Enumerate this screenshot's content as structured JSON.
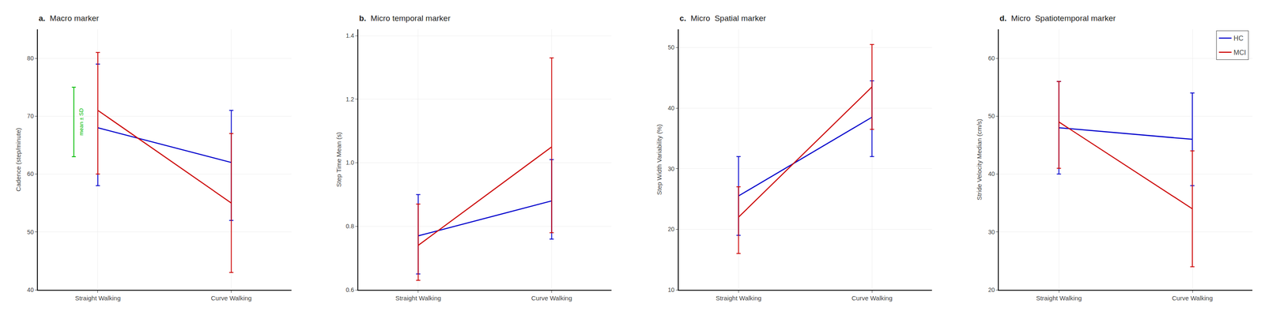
{
  "chart_data": [
    {
      "type": "line",
      "title": "Macro marker",
      "annotations": [
        {
          "text": "a."
        },
        {
          "text": "mean ± SD",
          "color": "#00bb00",
          "y": 69,
          "yerr": 6
        }
      ],
      "categories": [
        "Straight Walking",
        "Curve Walking"
      ],
      "ylabel": "Cadence (step/minute)",
      "ylim": [
        40,
        85
      ],
      "yticks": [
        40,
        50,
        60,
        70,
        80
      ],
      "grid": true,
      "series": [
        {
          "name": "HC",
          "color": "#0000cc",
          "values": [
            68,
            62
          ],
          "yerr_low": [
            10,
            10
          ],
          "yerr_high": [
            11,
            9
          ]
        },
        {
          "name": "MCI",
          "color": "#cc0000",
          "values": [
            71,
            55
          ],
          "yerr_low": [
            11,
            12
          ],
          "yerr_high": [
            10,
            12
          ]
        }
      ]
    },
    {
      "type": "line",
      "title": "Micro temporal marker",
      "annotations": [
        {
          "text": "b."
        }
      ],
      "categories": [
        "Straight Walking",
        "Curve Walking"
      ],
      "ylabel": "Step Time Mean (s)",
      "ylim": [
        0.6,
        1.42
      ],
      "yticks": [
        0.6,
        0.8,
        {
          "value": 1.0,
          "label": "1.0"
        },
        1.2,
        1.4
      ],
      "grid": true,
      "series": [
        {
          "name": "HC",
          "color": "#0000cc",
          "values": [
            0.77,
            0.88
          ],
          "yerr_low": [
            0.12,
            0.12
          ],
          "yerr_high": [
            0.13,
            0.13
          ]
        },
        {
          "name": "MCI",
          "color": "#cc0000",
          "values": [
            0.74,
            1.05
          ],
          "yerr_low": [
            0.11,
            0.27
          ],
          "yerr_high": [
            0.13,
            0.28
          ]
        }
      ]
    },
    {
      "type": "line",
      "title": "Micro  Spatial marker",
      "annotations": [
        {
          "text": "c."
        }
      ],
      "categories": [
        "Straight Walking",
        "Curve Walking"
      ],
      "ylabel": "Step Width Variability (%)",
      "ylim": [
        10,
        53
      ],
      "yticks": [
        10,
        20,
        30,
        40,
        50
      ],
      "grid": true,
      "series": [
        {
          "name": "HC",
          "color": "#0000cc",
          "values": [
            25.5,
            38.5
          ],
          "yerr_low": [
            6.5,
            6.5
          ],
          "yerr_high": [
            6.5,
            6.0
          ]
        },
        {
          "name": "MCI",
          "color": "#cc0000",
          "values": [
            22,
            43.5
          ],
          "yerr_low": [
            6,
            7
          ],
          "yerr_high": [
            5,
            7
          ]
        }
      ]
    },
    {
      "type": "line",
      "title": "Micro  Spatiotemporal marker",
      "annotations": [
        {
          "text": "d."
        }
      ],
      "categories": [
        "Straight Walking",
        "Curve Walking"
      ],
      "ylabel": "Stride Velocity Median (cm/s)",
      "ylim": [
        20,
        65
      ],
      "yticks": [
        20,
        30,
        40,
        50,
        60
      ],
      "grid": true,
      "legend": "upper right",
      "series": [
        {
          "name": "HC",
          "color": "#0000cc",
          "values": [
            48,
            46
          ],
          "yerr_low": [
            8,
            8
          ],
          "yerr_high": [
            8,
            8
          ]
        },
        {
          "name": "MCI",
          "color": "#cc0000",
          "values": [
            49,
            34
          ],
          "yerr_low": [
            8,
            10
          ],
          "yerr_high": [
            7,
            10
          ]
        }
      ]
    }
  ]
}
